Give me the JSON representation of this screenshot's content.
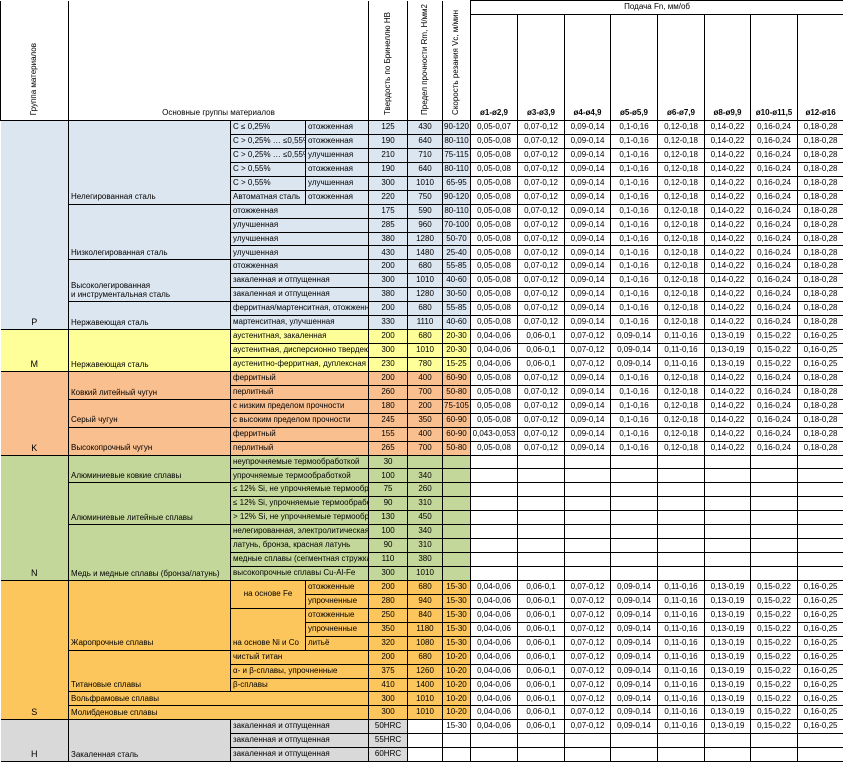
{
  "colors": {
    "p": "#DCE6F1",
    "m": "#FFFF99",
    "k": "#FABF8F",
    "n": "#C4D79B",
    "s": "#FCC65C",
    "h": "#D9D9D9",
    "w": "#FFFFFF",
    "border": "#000000"
  },
  "header": {
    "col_group": "Группа материалов",
    "col_main": "Основные группы материалов",
    "col_hb": "Твердость по Бринеллю HB",
    "col_rm": "Предел прочности Rm, Н/мм2",
    "col_vc": "Скорость резания Vc, м/мин",
    "feed_title": "Подача Fn, мм/об",
    "feed_cols": [
      "ø1-ø2,9",
      "ø3-ø3,9",
      "ø4-ø4,9",
      "ø5-ø5,9",
      "ø6-ø7,9",
      "ø8-ø9,9",
      "ø10-ø11,5",
      "ø12-ø16"
    ]
  },
  "table": {
    "feed_presets": {
      "f1": [
        "0,05-0,07",
        "0,07-0,12",
        "0,09-0,14",
        "0,1-0,16",
        "0,12-0,18",
        "0,14-0,22",
        "0,16-0,24",
        "0,18-0,28"
      ],
      "f2": [
        "0,05-0,08",
        "0,07-0,12",
        "0,09-0,14",
        "0,1-0,16",
        "0,12-0,18",
        "0,14-0,22",
        "0,16-0,24",
        "0,18-0,28"
      ],
      "f3": [
        "0,04-0,06",
        "0,06-0,1",
        "0,07-0,12",
        "0,09-0,14",
        "0,11-0,16",
        "0,13-0,19",
        "0,15-0,22",
        "0,16-0,25"
      ],
      "f4": [
        "0,043-0,053",
        "0,07-0,12",
        "0,09-0,14",
        "0,1-0,16",
        "0,12-0,18",
        "0,14-0,22",
        "0,16-0,24",
        "0,18-0,28"
      ]
    },
    "rows": [
      {
        "bg": "p",
        "pre": [
          {
            "t": "P",
            "rs": 15,
            "cls": "letter"
          },
          {
            "t": "Нелегированная сталь",
            "rs": 6,
            "cls": "label"
          },
          {
            "t": "C ≤ 0,25%"
          },
          {
            "t": "отожженная"
          }
        ],
        "hb": "125",
        "rm": "430",
        "vc": "90-120",
        "fp": "f1"
      },
      {
        "bg": "p",
        "pre": [
          {
            "t": "C > 0,25% … ≤0,55%"
          },
          {
            "t": "отожженная"
          }
        ],
        "hb": "190",
        "rm": "640",
        "vc": "80-110",
        "fp": "f2"
      },
      {
        "bg": "p",
        "pre": [
          {
            "t": "C > 0,25% … ≤0,55%"
          },
          {
            "t": "улучшенная"
          }
        ],
        "hb": "210",
        "rm": "710",
        "vc": "75-115",
        "fp": "f2"
      },
      {
        "bg": "p",
        "pre": [
          {
            "t": "C > 0,55%"
          },
          {
            "t": "отожженная"
          }
        ],
        "hb": "190",
        "rm": "640",
        "vc": "80-110",
        "fp": "f2"
      },
      {
        "bg": "p",
        "pre": [
          {
            "t": "C > 0,55%"
          },
          {
            "t": "улучшенная"
          }
        ],
        "hb": "300",
        "rm": "1010",
        "vc": "65-95",
        "fp": "f2"
      },
      {
        "bg": "p",
        "pre": [
          {
            "t": "Автоматная сталь"
          },
          {
            "t": "отожженная"
          }
        ],
        "hb": "220",
        "rm": "750",
        "vc": "90-120",
        "fp": "f2"
      },
      {
        "bg": "p",
        "pre": [
          {
            "t": "Низколегированная сталь",
            "rs": 4,
            "cls": "label"
          },
          {
            "t": "отожженная",
            "cs": 2
          }
        ],
        "hb": "175",
        "rm": "590",
        "vc": "80-110",
        "fp": "f2"
      },
      {
        "bg": "p",
        "pre": [
          {
            "t": "улучшенная",
            "cs": 2
          }
        ],
        "hb": "285",
        "rm": "960",
        "vc": "70-100",
        "fp": "f2"
      },
      {
        "bg": "p",
        "pre": [
          {
            "t": "улучшенная",
            "cs": 2
          }
        ],
        "hb": "380",
        "rm": "1280",
        "vc": "50-70",
        "fp": "f2"
      },
      {
        "bg": "p",
        "pre": [
          {
            "t": "улучшенная",
            "cs": 2
          }
        ],
        "hb": "430",
        "rm": "1480",
        "vc": "25-40",
        "fp": "f2"
      },
      {
        "bg": "p",
        "pre": [
          {
            "t": "Высоколегированная\nи инструментальная сталь",
            "rs": 3,
            "cls": "label"
          },
          {
            "t": "отожженная",
            "cs": 2
          }
        ],
        "hb": "200",
        "rm": "680",
        "vc": "55-85",
        "fp": "f2"
      },
      {
        "bg": "p",
        "pre": [
          {
            "t": "закаленная и отпущенная",
            "cs": 2
          }
        ],
        "hb": "300",
        "rm": "1010",
        "vc": "40-60",
        "fp": "f2"
      },
      {
        "bg": "p",
        "pre": [
          {
            "t": "закаленная и отпущенная",
            "cs": 2
          }
        ],
        "hb": "380",
        "rm": "1280",
        "vc": "30-50",
        "fp": "f2"
      },
      {
        "bg": "p",
        "pre": [
          {
            "t": "Нержавеющая сталь",
            "rs": 2,
            "cls": "label"
          },
          {
            "t": "ферритная/мартенситная, отожженная",
            "cs": 2
          }
        ],
        "hb": "200",
        "rm": "680",
        "vc": "55-85",
        "fp": "f2"
      },
      {
        "bg": "p",
        "pre": [
          {
            "t": "мартенситная, улучшенная",
            "cs": 2
          }
        ],
        "hb": "330",
        "rm": "1110",
        "vc": "40-60",
        "fp": "f2"
      },
      {
        "bg": "m",
        "pre": [
          {
            "t": "M",
            "rs": 3,
            "cls": "letter"
          },
          {
            "t": "Нержавеющая сталь",
            "rs": 3,
            "cls": "label"
          },
          {
            "t": "аустенитная, закаленная",
            "cs": 2
          }
        ],
        "hb": "200",
        "rm": "680",
        "vc": "20-30",
        "fp": "f3"
      },
      {
        "bg": "m",
        "pre": [
          {
            "t": "аустенитная, дисперсионно твердеющая",
            "cs": 2
          }
        ],
        "hb": "300",
        "rm": "1010",
        "vc": "20-30",
        "fp": "f3"
      },
      {
        "bg": "m",
        "pre": [
          {
            "t": "аустенитно-ферритная, дуплексная",
            "cs": 2
          }
        ],
        "hb": "230",
        "rm": "780",
        "vc": "15-25",
        "fp": "f3"
      },
      {
        "bg": "k",
        "pre": [
          {
            "t": "K",
            "rs": 6,
            "cls": "letter"
          },
          {
            "t": "Ковкий литейный чугун",
            "rs": 2,
            "cls": "label"
          },
          {
            "t": "ферритный",
            "cs": 2
          }
        ],
        "hb": "200",
        "rm": "400",
        "vc": "60-90",
        "fp": "f2"
      },
      {
        "bg": "k",
        "pre": [
          {
            "t": "перлитный",
            "cs": 2
          }
        ],
        "hb": "260",
        "rm": "700",
        "vc": "50-80",
        "fp": "f2"
      },
      {
        "bg": "k",
        "pre": [
          {
            "t": "Серый чугун",
            "rs": 2,
            "cls": "label"
          },
          {
            "t": "с низким пределом прочности",
            "cs": 2
          }
        ],
        "hb": "180",
        "rm": "200",
        "vc": "75-105",
        "fp": "f2"
      },
      {
        "bg": "k",
        "pre": [
          {
            "t": "с высоким пределом прочности",
            "cs": 2
          }
        ],
        "hb": "245",
        "rm": "350",
        "vc": "60-90",
        "fp": "f2"
      },
      {
        "bg": "k",
        "pre": [
          {
            "t": "Высокопрочный чугун",
            "rs": 2,
            "cls": "label"
          },
          {
            "t": "ферритный",
            "cs": 2
          }
        ],
        "hb": "155",
        "rm": "400",
        "vc": "60-90",
        "fp": "f4"
      },
      {
        "bg": "k",
        "pre": [
          {
            "t": "перлитный",
            "cs": 2
          }
        ],
        "hb": "265",
        "rm": "700",
        "vc": "50-80",
        "fp": "f2"
      },
      {
        "bg": "n",
        "pre": [
          {
            "t": "N",
            "rs": 9,
            "cls": "letter"
          },
          {
            "t": "Алюминиевые ковкие сплавы",
            "rs": 2,
            "cls": "label"
          },
          {
            "t": "неупрочняемые термообработкой",
            "cs": 2
          }
        ],
        "hb": "30",
        "rm": "",
        "vc": "",
        "fp": null
      },
      {
        "bg": "n",
        "pre": [
          {
            "t": "упрочняемые термообработкой",
            "cs": 2
          }
        ],
        "hb": "100",
        "rm": "340",
        "vc": "",
        "fp": null
      },
      {
        "bg": "n",
        "pre": [
          {
            "t": "Алюминиевые литейные сплавы",
            "rs": 3,
            "cls": "label"
          },
          {
            "t": "≤ 12% Si, не упрочняемые термообработкой",
            "cs": 2
          }
        ],
        "hb": "75",
        "rm": "260",
        "vc": "",
        "fp": null
      },
      {
        "bg": "n",
        "pre": [
          {
            "t": "≤ 12% Si, упрочняемые термообработкой",
            "cs": 2
          }
        ],
        "hb": "90",
        "rm": "310",
        "vc": "",
        "fp": null
      },
      {
        "bg": "n",
        "pre": [
          {
            "t": "> 12% Si, не упрочняемые термообработкой",
            "cs": 2
          }
        ],
        "hb": "130",
        "rm": "450",
        "vc": "",
        "fp": null
      },
      {
        "bg": "n",
        "pre": [
          {
            "t": "Медь и медные сплавы (бронза/латунь)",
            "rs": 4,
            "cls": "label"
          },
          {
            "t": "нелегированная, электролитическая",
            "cs": 2
          }
        ],
        "hb": "100",
        "rm": "340",
        "vc": "",
        "fp": null
      },
      {
        "bg": "n",
        "pre": [
          {
            "t": "латунь, бронза, красная латунь",
            "cs": 2
          }
        ],
        "hb": "90",
        "rm": "310",
        "vc": "",
        "fp": null
      },
      {
        "bg": "n",
        "pre": [
          {
            "t": "медные сплавы (сегментная стружка)",
            "cs": 2
          }
        ],
        "hb": "110",
        "rm": "380",
        "vc": "",
        "fp": null
      },
      {
        "bg": "n",
        "pre": [
          {
            "t": "высокопрочные сплавы Cu-Al-Fe",
            "cs": 2
          }
        ],
        "hb": "300",
        "rm": "1010",
        "vc": "",
        "fp": null
      },
      {
        "bg": "s",
        "pre": [
          {
            "t": "S",
            "rs": 10,
            "cls": "letter"
          },
          {
            "t": "Жаропрочные сплавы",
            "rs": 5,
            "cls": "label"
          },
          {
            "t": "на основе Fe",
            "rs": 2,
            "cls": "cond"
          },
          {
            "t": "отожженные"
          }
        ],
        "hb": "200",
        "rm": "680",
        "vc": "15-30",
        "fp": "f3"
      },
      {
        "bg": "s",
        "pre": [
          {
            "t": "упрочненные"
          }
        ],
        "hb": "280",
        "rm": "940",
        "vc": "15-30",
        "fp": "f3"
      },
      {
        "bg": "s",
        "pre": [
          {
            "t": "на основе Ni и Co",
            "rs": 3,
            "cls": "condb"
          },
          {
            "t": "отожженные"
          }
        ],
        "hb": "250",
        "rm": "840",
        "vc": "15-30",
        "fp": "f3"
      },
      {
        "bg": "s",
        "pre": [
          {
            "t": "упрочненные"
          }
        ],
        "hb": "350",
        "rm": "1180",
        "vc": "15-30",
        "fp": "f3"
      },
      {
        "bg": "s",
        "pre": [
          {
            "t": "литьё"
          }
        ],
        "hb": "320",
        "rm": "1080",
        "vc": "15-30",
        "fp": "f3"
      },
      {
        "bg": "s",
        "pre": [
          {
            "t": "Титановые сплавы",
            "rs": 3,
            "cls": "label"
          },
          {
            "t": "чистый титан",
            "cs": 2
          }
        ],
        "hb": "200",
        "rm": "680",
        "vc": "10-20",
        "fp": "f3"
      },
      {
        "bg": "s",
        "pre": [
          {
            "t": "α- и β-сплавы, упрочненные",
            "cs": 2
          }
        ],
        "hb": "375",
        "rm": "1260",
        "vc": "10-20",
        "fp": "f3"
      },
      {
        "bg": "s",
        "pre": [
          {
            "t": "β-сплавы",
            "cs": 2
          }
        ],
        "hb": "410",
        "rm": "1400",
        "vc": "10-20",
        "fp": "f3"
      },
      {
        "bg": "s",
        "pre": [
          {
            "t": "Вольфрамовые сплавы",
            "cs": 3,
            "cls": "label"
          }
        ],
        "hb": "300",
        "rm": "1010",
        "vc": "10-20",
        "fp": "f3"
      },
      {
        "bg": "s",
        "pre": [
          {
            "t": "Молибденовые сплавы",
            "cs": 3,
            "cls": "label"
          }
        ],
        "hb": "300",
        "rm": "1010",
        "vc": "10-20",
        "fp": "f3"
      },
      {
        "bg": "h",
        "pre": [
          {
            "t": "H",
            "rs": 3,
            "cls": "letter"
          },
          {
            "t": "Закаленная сталь",
            "rs": 3,
            "cls": "label"
          },
          {
            "t": "закаленная и отпущенная",
            "cs": 2
          }
        ],
        "hb": "50HRC",
        "rm": "",
        "vc": "15-30",
        "wb": true,
        "fp": "f3"
      },
      {
        "bg": "h",
        "pre": [
          {
            "t": "закаленная и отпущенная",
            "cs": 2
          }
        ],
        "hb": "55HRC",
        "rm": "",
        "vc": "",
        "wb": true,
        "fp": null
      },
      {
        "bg": "h",
        "pre": [
          {
            "t": "закаленная и отпущенная",
            "cs": 2
          }
        ],
        "hb": "60HRC",
        "rm": "",
        "vc": "",
        "wb": true,
        "fp": null
      }
    ]
  }
}
